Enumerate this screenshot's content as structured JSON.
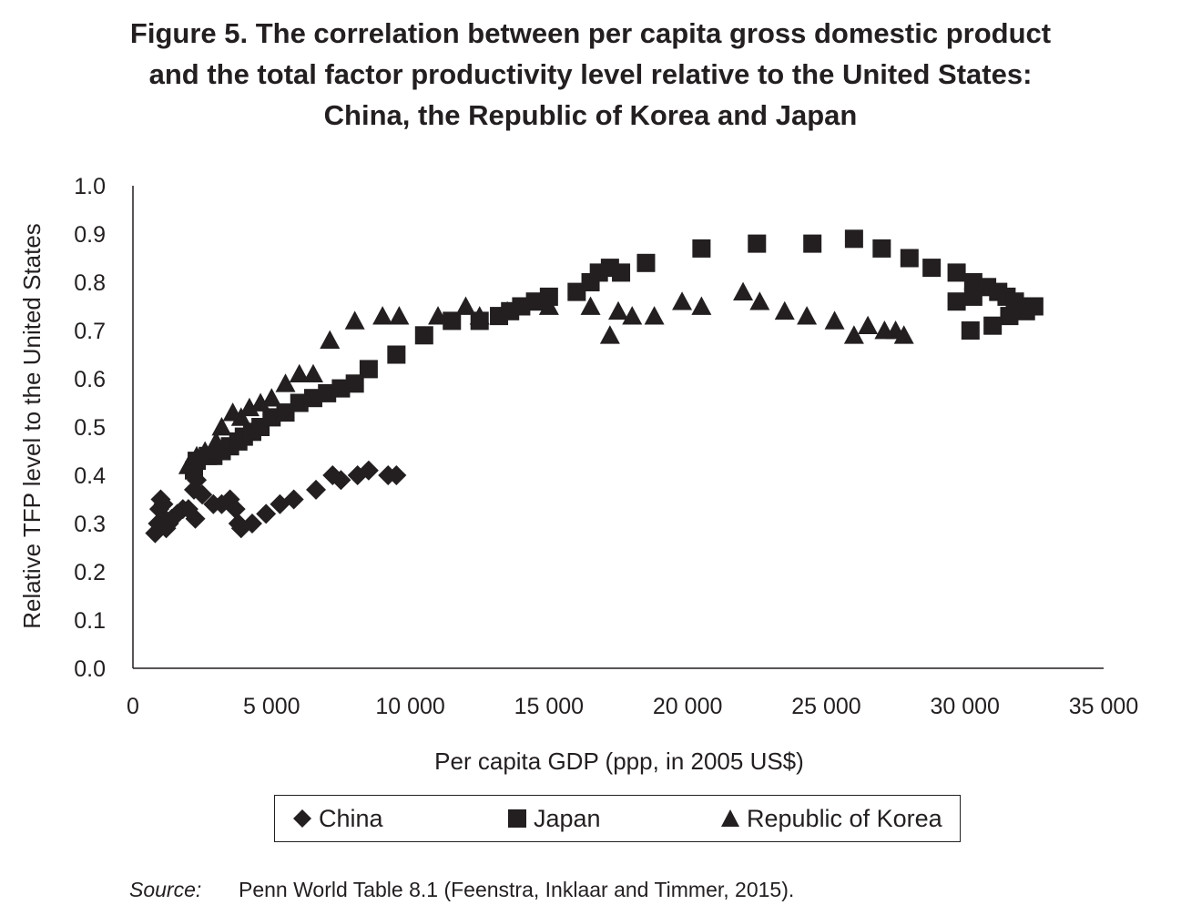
{
  "figure": {
    "title_lines": [
      "Figure 5. The correlation between per capita gross domestic product",
      "and the total factor productivity level relative to the United States:",
      "China, the Republic of Korea and Japan"
    ]
  },
  "source": {
    "label": "Source:",
    "text": "Penn World Table 8.1 (Feenstra, Inklaar and Timmer, 2015)."
  },
  "chart_data": {
    "type": "scatter",
    "title": "Figure 5. The correlation between per capita gross domestic product and the total factor productivity level relative to the United States: China, the Republic of Korea and Japan",
    "xlabel": "Per capita GDP (ppp, in 2005 US$)",
    "ylabel": "Relative TFP level to the United States",
    "xlim": [
      0,
      35000
    ],
    "ylim": [
      0,
      1.0
    ],
    "x_ticks": [
      "0",
      "5 000",
      "10 000",
      "15 000",
      "20 000",
      "25 000",
      "30 000",
      "35 000"
    ],
    "y_ticks": [
      "0.0",
      "0.1",
      "0.2",
      "0.3",
      "0.4",
      "0.5",
      "0.6",
      "0.7",
      "0.8",
      "0.9",
      "1.0"
    ],
    "grid": false,
    "legend_position": "bottom",
    "series": [
      {
        "name": "China",
        "marker": "diamond",
        "color": "#231f20",
        "points": [
          [
            800,
            0.28
          ],
          [
            900,
            0.3
          ],
          [
            950,
            0.33
          ],
          [
            1000,
            0.35
          ],
          [
            1100,
            0.34
          ],
          [
            1150,
            0.31
          ],
          [
            1200,
            0.29
          ],
          [
            1300,
            0.3
          ],
          [
            1400,
            0.31
          ],
          [
            1600,
            0.32
          ],
          [
            1800,
            0.33
          ],
          [
            2000,
            0.33
          ],
          [
            2200,
            0.37
          ],
          [
            2300,
            0.39
          ],
          [
            2250,
            0.31
          ],
          [
            2500,
            0.36
          ],
          [
            2900,
            0.34
          ],
          [
            3200,
            0.34
          ],
          [
            3500,
            0.35
          ],
          [
            3700,
            0.33
          ],
          [
            3800,
            0.3
          ],
          [
            3900,
            0.29
          ],
          [
            4300,
            0.3
          ],
          [
            4800,
            0.32
          ],
          [
            5300,
            0.34
          ],
          [
            5800,
            0.35
          ],
          [
            6600,
            0.37
          ],
          [
            7500,
            0.39
          ],
          [
            8100,
            0.4
          ],
          [
            8500,
            0.41
          ],
          [
            9200,
            0.4
          ],
          [
            9500,
            0.4
          ],
          [
            7200,
            0.4
          ]
        ]
      },
      {
        "name": "Japan",
        "marker": "square",
        "color": "#231f20",
        "points": [
          [
            2200,
            0.41
          ],
          [
            2300,
            0.43
          ],
          [
            2700,
            0.44
          ],
          [
            2900,
            0.44
          ],
          [
            3200,
            0.45
          ],
          [
            3500,
            0.46
          ],
          [
            3800,
            0.47
          ],
          [
            4000,
            0.48
          ],
          [
            4300,
            0.49
          ],
          [
            4600,
            0.5
          ],
          [
            5000,
            0.52
          ],
          [
            5500,
            0.53
          ],
          [
            6000,
            0.55
          ],
          [
            6500,
            0.56
          ],
          [
            7000,
            0.57
          ],
          [
            7500,
            0.58
          ],
          [
            8000,
            0.59
          ],
          [
            8500,
            0.62
          ],
          [
            9500,
            0.65
          ],
          [
            10500,
            0.69
          ],
          [
            11500,
            0.72
          ],
          [
            12500,
            0.72
          ],
          [
            13200,
            0.73
          ],
          [
            13600,
            0.74
          ],
          [
            14000,
            0.75
          ],
          [
            14500,
            0.76
          ],
          [
            15000,
            0.77
          ],
          [
            16000,
            0.78
          ],
          [
            16500,
            0.8
          ],
          [
            16800,
            0.82
          ],
          [
            17200,
            0.83
          ],
          [
            17600,
            0.82
          ],
          [
            18500,
            0.84
          ],
          [
            20500,
            0.87
          ],
          [
            22500,
            0.88
          ],
          [
            24500,
            0.88
          ],
          [
            26000,
            0.89
          ],
          [
            27000,
            0.87
          ],
          [
            28000,
            0.85
          ],
          [
            28800,
            0.83
          ],
          [
            29700,
            0.82
          ],
          [
            30300,
            0.8
          ],
          [
            30800,
            0.79
          ],
          [
            31200,
            0.78
          ],
          [
            31500,
            0.77
          ],
          [
            31800,
            0.76
          ],
          [
            32000,
            0.75
          ],
          [
            32200,
            0.74
          ],
          [
            32500,
            0.75
          ],
          [
            31600,
            0.73
          ],
          [
            31000,
            0.71
          ],
          [
            30200,
            0.7
          ],
          [
            29700,
            0.76
          ],
          [
            30300,
            0.77
          ]
        ]
      },
      {
        "name": "Republic of Korea",
        "marker": "triangle",
        "color": "#231f20",
        "points": [
          [
            2000,
            0.42
          ],
          [
            2300,
            0.44
          ],
          [
            2600,
            0.45
          ],
          [
            3000,
            0.47
          ],
          [
            3200,
            0.5
          ],
          [
            3600,
            0.53
          ],
          [
            3900,
            0.52
          ],
          [
            4200,
            0.54
          ],
          [
            4600,
            0.55
          ],
          [
            5000,
            0.56
          ],
          [
            5500,
            0.59
          ],
          [
            6000,
            0.61
          ],
          [
            6500,
            0.61
          ],
          [
            7100,
            0.68
          ],
          [
            8000,
            0.72
          ],
          [
            9000,
            0.73
          ],
          [
            9600,
            0.73
          ],
          [
            11000,
            0.73
          ],
          [
            12000,
            0.75
          ],
          [
            12500,
            0.73
          ],
          [
            13500,
            0.74
          ],
          [
            15000,
            0.75
          ],
          [
            16500,
            0.75
          ],
          [
            17200,
            0.69
          ],
          [
            17500,
            0.74
          ],
          [
            18000,
            0.73
          ],
          [
            18800,
            0.73
          ],
          [
            19800,
            0.76
          ],
          [
            20500,
            0.75
          ],
          [
            22000,
            0.78
          ],
          [
            22600,
            0.76
          ],
          [
            23500,
            0.74
          ],
          [
            24300,
            0.73
          ],
          [
            25300,
            0.72
          ],
          [
            26000,
            0.69
          ],
          [
            26500,
            0.71
          ],
          [
            27100,
            0.7
          ],
          [
            27500,
            0.7
          ],
          [
            27800,
            0.69
          ]
        ]
      }
    ]
  }
}
